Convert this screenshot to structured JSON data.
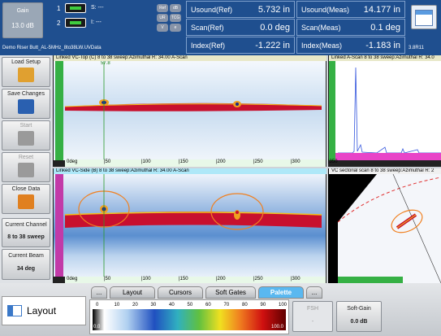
{
  "gain": {
    "label": "Gain",
    "value": "13.0 dB"
  },
  "channels": [
    {
      "number": "1",
      "text": "S: ---"
    },
    {
      "number": "2",
      "text": "I: ---"
    }
  ],
  "mode_buttons": [
    "Ref",
    "dB",
    "UR",
    "TCG",
    "V",
    "e"
  ],
  "file_name": "Demo Riser Butt_AL-5MHz_8to38LW.UVData",
  "readings": [
    {
      "label": "Usound(Ref)",
      "value": "5.732 in"
    },
    {
      "label": "Usound(Meas)",
      "value": "14.177 in"
    },
    {
      "label": "Scan(Ref)",
      "value": "0.0 deg"
    },
    {
      "label": "Scan(Meas)",
      "value": "0.1 deg"
    },
    {
      "label": "Index(Ref)",
      "value": "-1.222 in"
    },
    {
      "label": "Index(Meas)",
      "value": "-1.183 in"
    }
  ],
  "version": "3.8R11",
  "sidebar": [
    "Load Setup",
    "Save Changes",
    "Start",
    "Reset",
    "Close Data"
  ],
  "current_channel": {
    "label": "Current Channel",
    "value": "8 to 38 sweep"
  },
  "current_beam": {
    "label": "Current Beam",
    "value": "34 deg"
  },
  "views": [
    "Linked VC-Top (C) 8 to 38 sweep:Azimuthal  R: 34.00 A-Scan",
    "Linked A-Scan 8 to 38 sweep:Azimuthal  R: 34.0",
    "Linked VC-Side (B) 8 to 38 sweep:Azimuthal  R: 34.00 A-Scan",
    "VC sectorial scan 8 to 38 sweep:Azimuthal  R: 2"
  ],
  "cursor_label": "57.8",
  "scan_axis": [
    "0deg",
    "|50",
    "|100",
    "|150",
    "|200",
    "|250",
    "|300",
    "|350"
  ],
  "tabs": [
    "...",
    "Layout",
    "Cursors",
    "Soft Gates",
    "Palette",
    "..."
  ],
  "panel_title": "Layout",
  "palette": {
    "ticks": [
      "0",
      "10",
      "20",
      "30",
      "40",
      "50",
      "60",
      "70",
      "80",
      "90",
      "100"
    ],
    "min": "0.0",
    "max": "100.0"
  },
  "fsh": {
    "label": "FSH",
    "value": "-"
  },
  "soft_gain": {
    "label": "Soft-Gain",
    "value": "0.0 dB"
  }
}
